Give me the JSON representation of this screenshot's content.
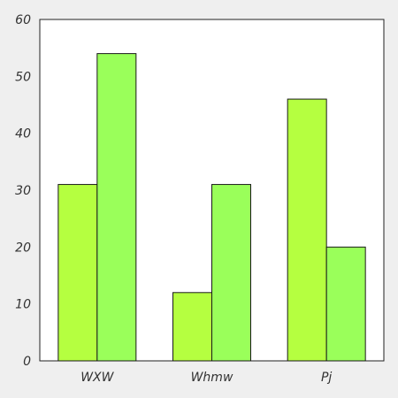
{
  "chart_data": {
    "type": "bar",
    "categories": [
      "WXW",
      "Whmw",
      "Pj"
    ],
    "series": [
      {
        "values": [
          31,
          12,
          46
        ],
        "color": "#b5ff40"
      },
      {
        "values": [
          54,
          31,
          20
        ],
        "color": "#9aff5a"
      }
    ],
    "ylim": [
      0,
      60
    ],
    "yticks": [
      0,
      10,
      20,
      30,
      40,
      50,
      60
    ],
    "grid": false,
    "legend": "none",
    "background": "#ffffff",
    "page_background": "#efefef"
  }
}
